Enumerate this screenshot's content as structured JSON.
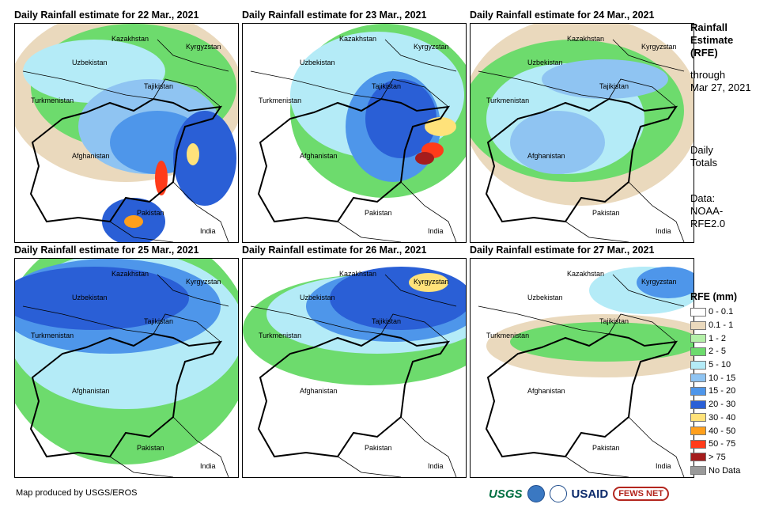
{
  "panels": [
    {
      "title": "Daily Rainfall estimate for 22 Mar., 2021"
    },
    {
      "title": "Daily Rainfall estimate for 23 Mar., 2021"
    },
    {
      "title": "Daily Rainfall estimate for 24 Mar., 2021"
    },
    {
      "title": "Daily Rainfall estimate for 25 Mar., 2021"
    },
    {
      "title": "Daily Rainfall estimate for 26 Mar., 2021"
    },
    {
      "title": "Daily Rainfall estimate for 27 Mar., 2021"
    }
  ],
  "country_labels": [
    "Kazakhstan",
    "Kyrgyzstan",
    "Uzbekistan",
    "Tajikistan",
    "Turkmenistan",
    "Afghanistan",
    "Pakistan",
    "India"
  ],
  "sidebar": {
    "title_lines": [
      "Rainfall",
      "Estimate",
      "(RFE)"
    ],
    "through_lines": [
      "through",
      "Mar 27, 2021"
    ],
    "type_lines": [
      "Daily",
      "Totals"
    ],
    "source_lines": [
      "Data:",
      "NOAA-",
      "RFE2.0"
    ]
  },
  "legend": {
    "title": "RFE (mm)",
    "items": [
      {
        "label": "0 - 0.1",
        "color": "#ffffff"
      },
      {
        "label": "0.1 - 1",
        "color": "#ead9bd"
      },
      {
        "label": "1 - 2",
        "color": "#b4f0a8"
      },
      {
        "label": "2 - 5",
        "color": "#6ddb6d"
      },
      {
        "label": "5 - 10",
        "color": "#b4ebf7"
      },
      {
        "label": "10 - 15",
        "color": "#8fc4f2"
      },
      {
        "label": "15 - 20",
        "color": "#4e96ea"
      },
      {
        "label": "20 - 30",
        "color": "#2a5fd6"
      },
      {
        "label": "30 - 40",
        "color": "#ffe27a"
      },
      {
        "label": "40 - 50",
        "color": "#ff9f1c"
      },
      {
        "label": "50 - 75",
        "color": "#ff3b1a"
      },
      {
        "label": "> 75",
        "color": "#a51c1c"
      },
      {
        "label": "No Data",
        "color": "#9a9a9a"
      }
    ]
  },
  "footer": {
    "credit": "Map produced by USGS/EROS",
    "logos": [
      "USGS",
      "NOAA",
      "USAID",
      "FEWS NET"
    ]
  }
}
